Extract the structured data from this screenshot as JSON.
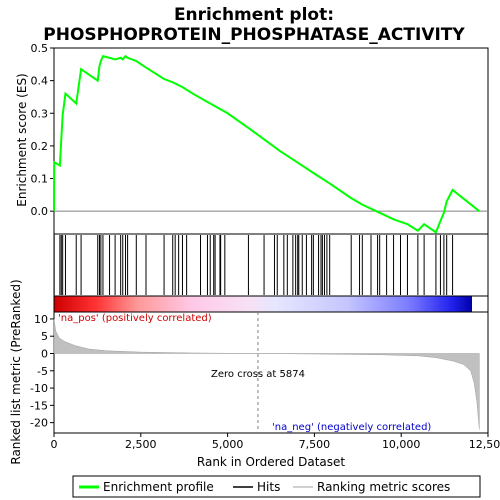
{
  "chart_data": {
    "type": "line",
    "title_line1": "Enrichment plot:",
    "title_line2": "PHOSPHOPROTEIN_PHOSPHATASE_ACTIVITY",
    "es_ylabel": "Enrichment score (ES)",
    "metric_ylabel": "Ranked list metric (PreRanked)",
    "xlabel": "Rank in Ordered Dataset",
    "xlim": [
      0,
      12500
    ],
    "es_ylim": [
      -0.07,
      0.5
    ],
    "metric_ylim": [
      -23,
      12
    ],
    "x_ticks": [
      "0",
      "2,500",
      "5,000",
      "7,500",
      "10,000",
      "12,500"
    ],
    "x_tick_values": [
      0,
      2500,
      5000,
      7500,
      10000,
      12500
    ],
    "es_ticks": [
      "0.0",
      "0.1",
      "0.2",
      "0.3",
      "0.4",
      "0.5"
    ],
    "es_tick_values": [
      0.0,
      0.1,
      0.2,
      0.3,
      0.4,
      0.5
    ],
    "metric_ticks": [
      "10",
      "5",
      "0",
      "-5",
      "-10",
      "-15",
      "-20"
    ],
    "metric_tick_values": [
      10,
      5,
      0,
      -5,
      -10,
      -15,
      -20
    ],
    "pos_label": "'na_pos' (positively correlated)",
    "neg_label": "'na_neg' (negatively correlated)",
    "zero_cross_label": "Zero cross at 5874",
    "zero_cross": 5874,
    "legend": [
      "Enrichment profile",
      "Hits",
      "Ranking metric scores"
    ],
    "colors": {
      "es_line": "#00ff00",
      "hits": "#000000",
      "metric": "#c0c0c0",
      "pos_text": "#cc0000",
      "neg_text": "#0000cc"
    },
    "hits": [
      5,
      170,
      210,
      250,
      330,
      640,
      780,
      1260,
      1310,
      1350,
      1410,
      1600,
      1760,
      1920,
      1980,
      2060,
      2120,
      2370,
      2650,
      3170,
      3420,
      3490,
      3590,
      3700,
      3820,
      4220,
      4420,
      4500,
      4600,
      4640,
      4780,
      4800,
      4920,
      5600,
      6050,
      6350,
      6430,
      6620,
      6720,
      6880,
      6960,
      7020,
      7050,
      7150,
      7270,
      7420,
      7470,
      7620,
      7690,
      7730,
      7790,
      7860,
      7940,
      8560,
      8800,
      8880,
      9130,
      9320,
      9380,
      9580,
      9780,
      9980,
      10180,
      10480,
      10660,
      11000,
      11130,
      11230,
      11310,
      11480
    ],
    "es_profile": {
      "x": [
        0,
        5,
        170,
        210,
        250,
        330,
        640,
        780,
        1260,
        1310,
        1350,
        1410,
        1600,
        1760,
        1920,
        1980,
        2060,
        2120,
        2370,
        2650,
        3170,
        3420,
        3700,
        4000,
        4500,
        5000,
        5600,
        6050,
        6500,
        7000,
        7500,
        7940,
        8560,
        8880,
        9380,
        9780,
        10180,
        10480,
        10660,
        11000,
        11130,
        11230,
        11310,
        11480,
        12250
      ],
      "y": [
        0.0,
        0.15,
        0.14,
        0.22,
        0.295,
        0.36,
        0.33,
        0.435,
        0.4,
        0.445,
        0.46,
        0.475,
        0.47,
        0.465,
        0.47,
        0.465,
        0.475,
        0.47,
        0.46,
        0.44,
        0.405,
        0.395,
        0.38,
        0.36,
        0.33,
        0.3,
        0.255,
        0.22,
        0.185,
        0.15,
        0.115,
        0.085,
        0.04,
        0.02,
        -0.005,
        -0.025,
        -0.04,
        -0.06,
        -0.04,
        -0.065,
        -0.03,
        -0.005,
        0.03,
        0.065,
        0.0
      ]
    },
    "metric_profile": {
      "x": [
        0,
        50,
        150,
        300,
        600,
        1000,
        1500,
        2500,
        4000,
        5874,
        8000,
        9500,
        10500,
        11000,
        11500,
        11800,
        12000,
        12100,
        12180,
        12250
      ],
      "y": [
        10,
        6.5,
        4.5,
        3.5,
        2.3,
        1.3,
        0.8,
        0.4,
        0.15,
        0.0,
        -0.2,
        -0.4,
        -0.7,
        -1.2,
        -2.2,
        -3.2,
        -5.0,
        -8.5,
        -14.0,
        -22.0
      ]
    }
  }
}
